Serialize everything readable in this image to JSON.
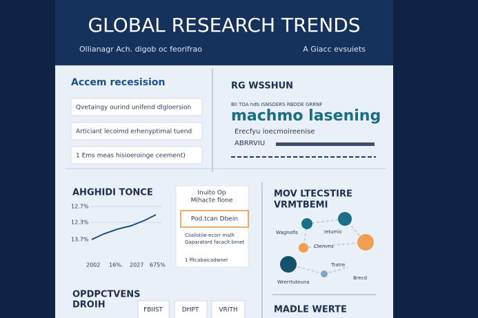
{
  "header": {
    "title": "GLOBAL RESEARCH TRENDS",
    "subtitle": "Ollianagr  Ach. digob oc feorifrao",
    "tagline": "A Giacc evsuiets"
  },
  "sidebar": {
    "heading": "Accem recesision",
    "items": [
      "Qvetaingy ourind unifend dlgloersion",
      "Articiant lecoimd erhenyptimal tuend",
      "1 Ems meas hisioeroinge ceement)"
    ]
  },
  "feature": {
    "heading": "RG WSSHUN",
    "meta": "BII   TOA     hdb   ISNSDERS  RBDDE   GRRNF",
    "keyword": "machmo lasening",
    "lines": [
      "Erecfyu  ioecmoireenise",
      "ABRRVIU"
    ]
  },
  "trend": {
    "heading": "AHGHIDI TONCE",
    "y_labels": [
      "12.7%",
      "12.3%",
      "13.7%"
    ],
    "x_labels": [
      "2002",
      "16%.",
      "2027",
      "675%"
    ]
  },
  "callout": {
    "title": [
      "Inuito Op",
      "Mihacte fione"
    ],
    "button": "Pod.tcan Dbein",
    "notes": [
      "Ciialistiie-ecorr malh",
      "Gaparatord facaclt brnet",
      "1 fftcabaicadwnel"
    ]
  },
  "network": {
    "heading": [
      "MOV LTECSTIRE",
      "VRMTBEMI"
    ],
    "labels": [
      "Wagnofis",
      "Ietumic",
      "Ctenvns",
      "Tratre",
      "Wrerrtuteuna",
      "Brecd"
    ]
  },
  "outlook": {
    "heading": [
      "OPDPCTVENS",
      "DROIH"
    ],
    "tabs": [
      "FBIIST",
      "DHPT",
      "VRITH"
    ]
  },
  "footer": {
    "heading": "MADLE WERTE"
  }
}
